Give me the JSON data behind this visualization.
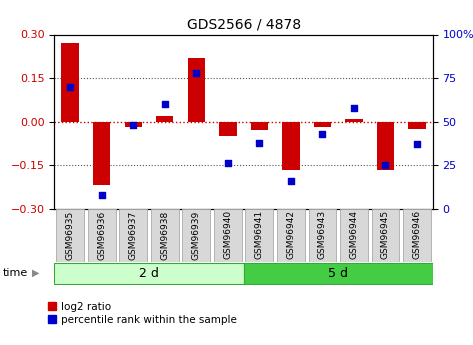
{
  "title": "GDS2566 / 4878",
  "samples": [
    "GSM96935",
    "GSM96936",
    "GSM96937",
    "GSM96938",
    "GSM96939",
    "GSM96940",
    "GSM96941",
    "GSM96942",
    "GSM96943",
    "GSM96944",
    "GSM96945",
    "GSM96946"
  ],
  "log2_ratio": [
    0.27,
    -0.22,
    -0.02,
    0.02,
    0.22,
    -0.05,
    -0.03,
    -0.165,
    -0.02,
    0.01,
    -0.165,
    -0.025
  ],
  "percentile_rank": [
    70,
    8,
    48,
    60,
    78,
    26,
    38,
    16,
    43,
    58,
    25,
    37
  ],
  "group1_label": "2 d",
  "group2_label": "5 d",
  "group1_count": 6,
  "group2_count": 6,
  "ylim": [
    -0.3,
    0.3
  ],
  "yticks_left": [
    -0.3,
    -0.15,
    0,
    0.15,
    0.3
  ],
  "yticks_right_pct": [
    0,
    25,
    50,
    75,
    100
  ],
  "bar_color": "#cc0000",
  "scatter_color": "#0000cc",
  "group1_bg": "#ccffcc",
  "group2_bg": "#44cc44",
  "sample_box_color": "#d8d8d8",
  "label_log2": "log2 ratio",
  "label_pct": "percentile rank within the sample",
  "time_label": "time",
  "hline_color": "#cc0000",
  "dotted_color": "#555555",
  "bar_width": 0.55
}
